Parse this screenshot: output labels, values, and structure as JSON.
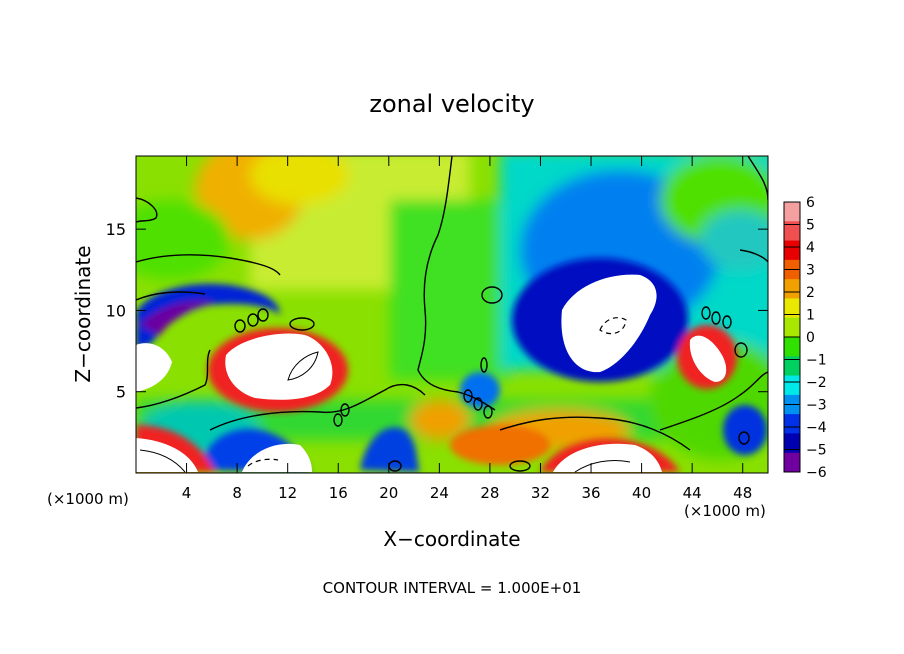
{
  "chart_data": {
    "type": "heatmap",
    "title": "zonal velocity",
    "xlabel": "X−coordinate",
    "ylabel": "Z−coordinate",
    "x_unit_left": "(×1000 m)",
    "x_unit_right": "(×1000 m)",
    "xlim": [
      0,
      50
    ],
    "ylim": [
      0,
      19.5
    ],
    "x_ticks": [
      4,
      8,
      12,
      16,
      20,
      24,
      28,
      32,
      36,
      40,
      44,
      48
    ],
    "x_tick_labels": [
      "4",
      "8",
      "12",
      "16",
      "20",
      "24",
      "28",
      "32",
      "36",
      "40",
      "44",
      "48"
    ],
    "y_ticks": [
      5,
      10,
      15
    ],
    "y_tick_labels": [
      "5",
      "10",
      "15"
    ],
    "colorbar": {
      "levels": [
        6,
        5,
        4,
        3,
        2,
        1,
        0,
        -1,
        -2,
        -3,
        -4,
        -5,
        -6
      ],
      "labels": [
        "6",
        "5",
        "4",
        "3",
        "2",
        "1",
        "0",
        "−1",
        "−2",
        "−3",
        "−4",
        "−5",
        "−6"
      ],
      "colors": [
        "#f4a0a0",
        "#f05050",
        "#e80000",
        "#f06000",
        "#f0a000",
        "#e8e800",
        "#a8e800",
        "#30e000",
        "#00d060",
        "#00e8e8",
        "#0090f0",
        "#0030e8",
        "#0000b0",
        "#7000a0"
      ]
    },
    "footer": "CONTOUR INTERVAL =  1.000E+01",
    "field_description": "regions of strong positive (white/red) and negative (purple/white) zonal velocity",
    "features": [
      {
        "kind": "positive",
        "x": 10,
        "z": 7.8,
        "value": 6
      },
      {
        "kind": "positive",
        "x": 44.5,
        "z": 7.5,
        "value": 6
      },
      {
        "kind": "positive",
        "x": 36,
        "z": 1.5,
        "value": 5
      },
      {
        "kind": "positive",
        "x": 3,
        "z": 1.2,
        "value": 5
      },
      {
        "kind": "positive",
        "x": 9,
        "z": 17.5,
        "value": 3
      },
      {
        "kind": "negative",
        "x": 37,
        "z": 9.8,
        "value": -6
      },
      {
        "kind": "negative",
        "x": 3.5,
        "z": 10.5,
        "value": -4
      },
      {
        "kind": "negative",
        "x": 34,
        "z": 16,
        "value": -2
      },
      {
        "kind": "negative",
        "x": 20,
        "z": 2.5,
        "value": -4
      },
      {
        "kind": "negative",
        "x": 27.5,
        "z": 4.8,
        "value": -3
      }
    ]
  }
}
